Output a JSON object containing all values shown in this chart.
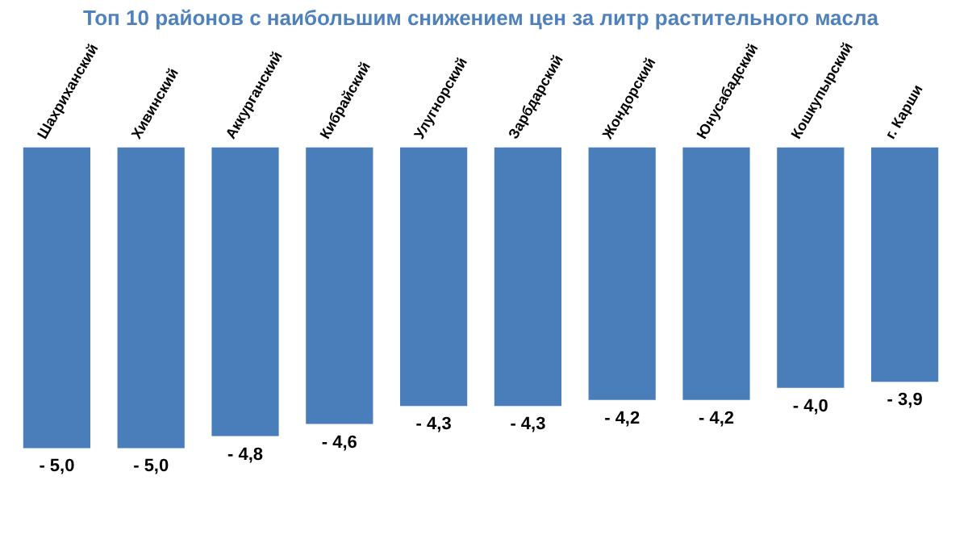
{
  "chart_data": {
    "type": "bar",
    "title": "Топ 10 районов с наибольшим снижением цен за литр растительного масла",
    "categories": [
      "Шахриханский",
      "Хивинский",
      "Аккурганский",
      "Кибрайский",
      "Улугнорский",
      "Зарбдарский",
      "Жондорский",
      "Юнусабадский",
      "Кошкупырский",
      "г. Карши"
    ],
    "values": [
      -5.0,
      -5.0,
      -4.8,
      -4.6,
      -4.3,
      -4.3,
      -4.2,
      -4.2,
      -4.0,
      -3.9
    ],
    "value_labels": [
      "- 5,0",
      "- 5,0",
      "- 4,8",
      "- 4,6",
      "- 4,3",
      "- 4,3",
      "- 4,2",
      "- 4,2",
      "- 4,0",
      "- 3,9"
    ],
    "color": "#4a7ebb",
    "tick_labels": "x",
    "grid": false,
    "legend": false
  }
}
